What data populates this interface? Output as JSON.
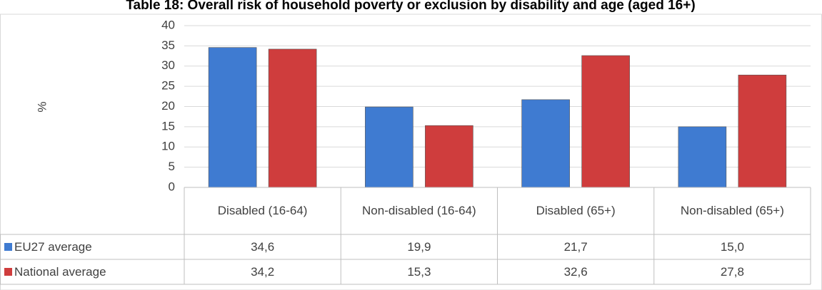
{
  "chart_data": {
    "type": "bar",
    "title": "Table 18: Overall risk of household poverty or exclusion by disability and age (aged 16+)",
    "ylabel": "%",
    "categories": [
      "Disabled (16-64)",
      "Non-disabled (16-64)",
      "Disabled (65+)",
      "Non-disabled (65+)"
    ],
    "series": [
      {
        "name": "EU27 average",
        "color": "#3f7bd1",
        "values": [
          34.6,
          19.9,
          21.7,
          15.0
        ],
        "value_labels": [
          "34,6",
          "19,9",
          "21,7",
          "15,0"
        ]
      },
      {
        "name": "National average",
        "color": "#cf3d3d",
        "values": [
          34.2,
          15.3,
          32.6,
          27.8
        ],
        "value_labels": [
          "34,2",
          "15,3",
          "32,6",
          "27,8"
        ]
      }
    ],
    "ylim": [
      0,
      40
    ],
    "yticks": [
      0,
      5,
      10,
      15,
      20,
      25,
      30,
      35,
      40
    ],
    "grid": true
  }
}
